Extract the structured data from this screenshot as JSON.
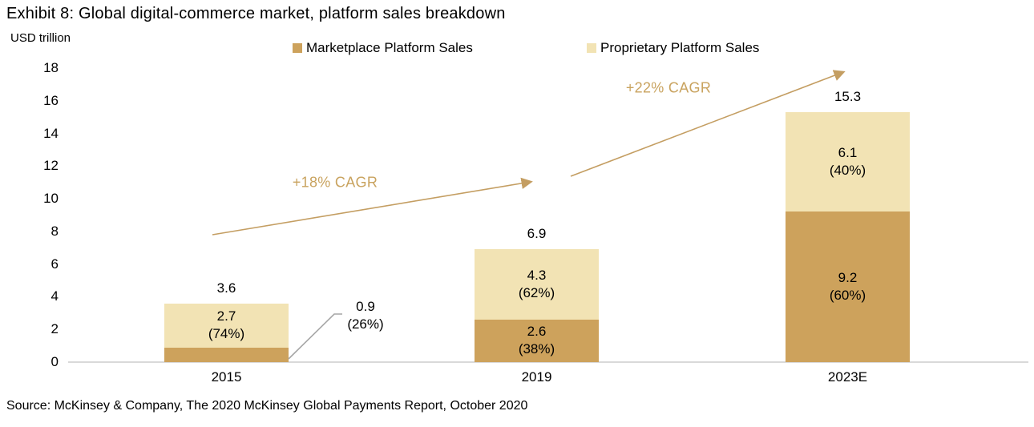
{
  "title": "Exhibit 8: Global digital-commerce market, platform sales breakdown",
  "axis_unit_label": "USD trillion",
  "source": "Source: McKinsey & Company, The 2020 McKinsey Global Payments Report, October 2020",
  "colors": {
    "marketplace": "#CDA25C",
    "proprietary": "#F2E3B4",
    "accent_gold": "#C49E62",
    "cagr_text": "#C9A35F",
    "axis_line": "#D9D9D9",
    "callout_line": "#A6A6A6",
    "text": "#000000"
  },
  "legend": [
    {
      "label": "Marketplace Platform Sales",
      "color": "#CDA25C"
    },
    {
      "label": "Proprietary Platform Sales",
      "color": "#F2E3B4"
    }
  ],
  "chart_data": {
    "type": "bar",
    "stacked": true,
    "title": "Exhibit 8: Global digital-commerce market, platform sales breakdown",
    "ylabel": "USD trillion",
    "categories": [
      "2015",
      "2019",
      "2023E"
    ],
    "series": [
      {
        "name": "Marketplace Platform Sales",
        "color": "#CDA25C",
        "values": [
          0.9,
          2.6,
          9.2
        ],
        "pct_labels": [
          "(26%)",
          "(38%)",
          "(60%)"
        ]
      },
      {
        "name": "Proprietary Platform Sales",
        "color": "#F2E3B4",
        "values": [
          2.7,
          4.3,
          6.1
        ],
        "pct_labels": [
          "(74%)",
          "(62%)",
          "(40%)"
        ]
      }
    ],
    "totals": [
      3.6,
      6.9,
      15.3
    ],
    "ylim": [
      0,
      18
    ],
    "ytick_step": 2,
    "grid": false,
    "legend_position": "top",
    "annotations": [
      {
        "text": "+18% CAGR",
        "from": "2015",
        "to": "2019"
      },
      {
        "text": "+22% CAGR",
        "from": "2019",
        "to": "2023E"
      }
    ],
    "callout": {
      "series": "Marketplace Platform Sales",
      "category": "2015",
      "value": 0.9,
      "pct_label": "(26%)"
    }
  }
}
